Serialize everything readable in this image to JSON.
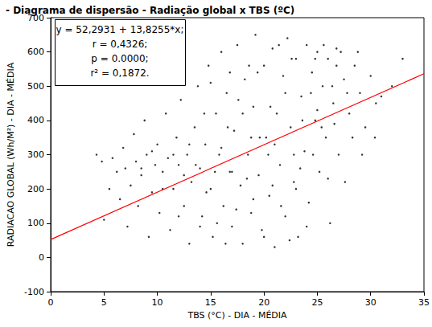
{
  "chart_data": {
    "type": "scatter",
    "title": "- Diagrama de dispersão - Radiação global x TBS (ºC)",
    "x_label": "TBS (°C) - DIA - MÉDIA",
    "y_label": "RADIACAO GLOBAL (Wh/M²) - DIA - MÉDIA",
    "xlim": [
      0,
      35
    ],
    "xticks": [
      0,
      5,
      10,
      15,
      20,
      25,
      30,
      35
    ],
    "ylim": [
      -100,
      700
    ],
    "yticks": [
      -100,
      0,
      100,
      200,
      300,
      400,
      500,
      600,
      700
    ],
    "grid": false,
    "color": "#000000",
    "marker": "circle",
    "annotations": [
      "y = 52,2931 + 13,8255*x;",
      "r = 0,4326;",
      "p = 0.0000;",
      "r² = 0,1872."
    ],
    "fit": {
      "x": [
        0,
        35
      ],
      "values": [
        52.2931,
        536.1856
      ],
      "color": "#ff0000"
    },
    "points": [
      [
        4.3,
        300
      ],
      [
        4.8,
        280
      ],
      [
        5.0,
        110
      ],
      [
        5.5,
        200
      ],
      [
        5.8,
        290
      ],
      [
        6.2,
        250
      ],
      [
        6.5,
        170
      ],
      [
        6.8,
        320
      ],
      [
        7.0,
        260
      ],
      [
        7.2,
        90
      ],
      [
        7.5,
        210
      ],
      [
        7.8,
        360
      ],
      [
        8.0,
        280
      ],
      [
        8.2,
        150
      ],
      [
        8.5,
        240
      ],
      [
        8.8,
        400
      ],
      [
        9.0,
        300
      ],
      [
        9.2,
        60
      ],
      [
        9.5,
        190
      ],
      [
        9.8,
        270
      ],
      [
        10.0,
        330
      ],
      [
        10.2,
        130
      ],
      [
        10.5,
        250
      ],
      [
        10.8,
        420
      ],
      [
        11.0,
        290
      ],
      [
        11.2,
        80
      ],
      [
        11.5,
        200
      ],
      [
        11.8,
        350
      ],
      [
        12.0,
        270
      ],
      [
        12.2,
        460
      ],
      [
        12.5,
        150
      ],
      [
        12.8,
        300
      ],
      [
        13.0,
        40
      ],
      [
        13.2,
        220
      ],
      [
        13.5,
        380
      ],
      [
        13.8,
        500
      ],
      [
        14.0,
        260
      ],
      [
        14.2,
        120
      ],
      [
        14.5,
        330
      ],
      [
        14.8,
        560
      ],
      [
        15.0,
        200
      ],
      [
        15.2,
        60
      ],
      [
        15.5,
        420
      ],
      [
        15.8,
        300
      ],
      [
        16.0,
        600
      ],
      [
        16.2,
        150
      ],
      [
        16.5,
        480
      ],
      [
        16.8,
        250
      ],
      [
        17.0,
        90
      ],
      [
        17.2,
        370
      ],
      [
        17.5,
        620
      ],
      [
        17.8,
        210
      ],
      [
        18.0,
        40
      ],
      [
        18.2,
        520
      ],
      [
        18.5,
        300
      ],
      [
        18.8,
        130
      ],
      [
        19.0,
        440
      ],
      [
        19.2,
        650
      ],
      [
        19.5,
        240
      ],
      [
        19.8,
        80
      ],
      [
        20.0,
        560
      ],
      [
        20.2,
        350
      ],
      [
        20.5,
        180
      ],
      [
        20.8,
        610
      ],
      [
        21.0,
        30
      ],
      [
        21.2,
        420
      ],
      [
        21.5,
        270
      ],
      [
        21.8,
        530
      ],
      [
        22.0,
        120
      ],
      [
        22.2,
        640
      ],
      [
        22.5,
        380
      ],
      [
        22.8,
        220
      ],
      [
        23.0,
        580
      ],
      [
        23.2,
        60
      ],
      [
        23.5,
        470
      ],
      [
        23.8,
        310
      ],
      [
        24.0,
        620
      ],
      [
        24.2,
        160
      ],
      [
        24.5,
        540
      ],
      [
        24.8,
        400
      ],
      [
        25.0,
        600
      ],
      [
        25.2,
        250
      ],
      [
        25.5,
        500
      ],
      [
        25.8,
        350
      ],
      [
        26.0,
        580
      ],
      [
        26.2,
        100
      ],
      [
        26.5,
        450
      ],
      [
        26.8,
        560
      ],
      [
        27.0,
        300
      ],
      [
        27.5,
        520
      ],
      [
        28.0,
        420
      ],
      [
        28.5,
        560
      ],
      [
        29.0,
        480
      ],
      [
        29.5,
        380
      ],
      [
        30.0,
        530
      ],
      [
        30.5,
        450
      ],
      [
        31.0,
        470
      ],
      [
        32.0,
        500
      ],
      [
        33.0,
        580
      ],
      [
        13.0,
        330
      ],
      [
        14.0,
        90
      ],
      [
        15.0,
        510
      ],
      [
        16.0,
        320
      ],
      [
        17.0,
        250
      ],
      [
        18.0,
        420
      ],
      [
        19.0,
        170
      ],
      [
        20.0,
        60
      ],
      [
        21.0,
        330
      ],
      [
        22.0,
        480
      ],
      [
        23.0,
        200
      ],
      [
        24.0,
        90
      ],
      [
        25.0,
        430
      ],
      [
        26.0,
        230
      ],
      [
        13.6,
        270
      ],
      [
        14.6,
        190
      ],
      [
        15.6,
        100
      ],
      [
        16.6,
        380
      ],
      [
        17.6,
        460
      ],
      [
        18.6,
        560
      ],
      [
        19.6,
        350
      ],
      [
        20.6,
        440
      ],
      [
        21.6,
        150
      ],
      [
        22.6,
        580
      ],
      [
        23.6,
        400
      ],
      [
        24.6,
        300
      ],
      [
        25.6,
        620
      ],
      [
        26.6,
        390
      ],
      [
        27.2,
        600
      ],
      [
        27.8,
        480
      ],
      [
        28.3,
        350
      ],
      [
        11.5,
        300
      ],
      [
        10.5,
        200
      ],
      [
        9.5,
        310
      ],
      [
        8.5,
        260
      ],
      [
        12.5,
        240
      ],
      [
        12.0,
        120
      ],
      [
        16.4,
        40
      ],
      [
        18.4,
        230
      ],
      [
        20.4,
        300
      ],
      [
        22.4,
        50
      ],
      [
        24.4,
        480
      ],
      [
        19.4,
        540
      ],
      [
        17.4,
        140
      ],
      [
        15.4,
        250
      ],
      [
        14.4,
        420
      ],
      [
        21.4,
        620
      ],
      [
        23.4,
        260
      ],
      [
        25.4,
        380
      ],
      [
        26.4,
        500
      ],
      [
        22.8,
        300
      ],
      [
        20.8,
        210
      ],
      [
        18.8,
        350
      ],
      [
        16.8,
        540
      ],
      [
        24.8,
        580
      ],
      [
        26.8,
        610
      ],
      [
        27.6,
        220
      ],
      [
        28.8,
        600
      ],
      [
        29.2,
        300
      ],
      [
        30.4,
        350
      ]
    ]
  }
}
